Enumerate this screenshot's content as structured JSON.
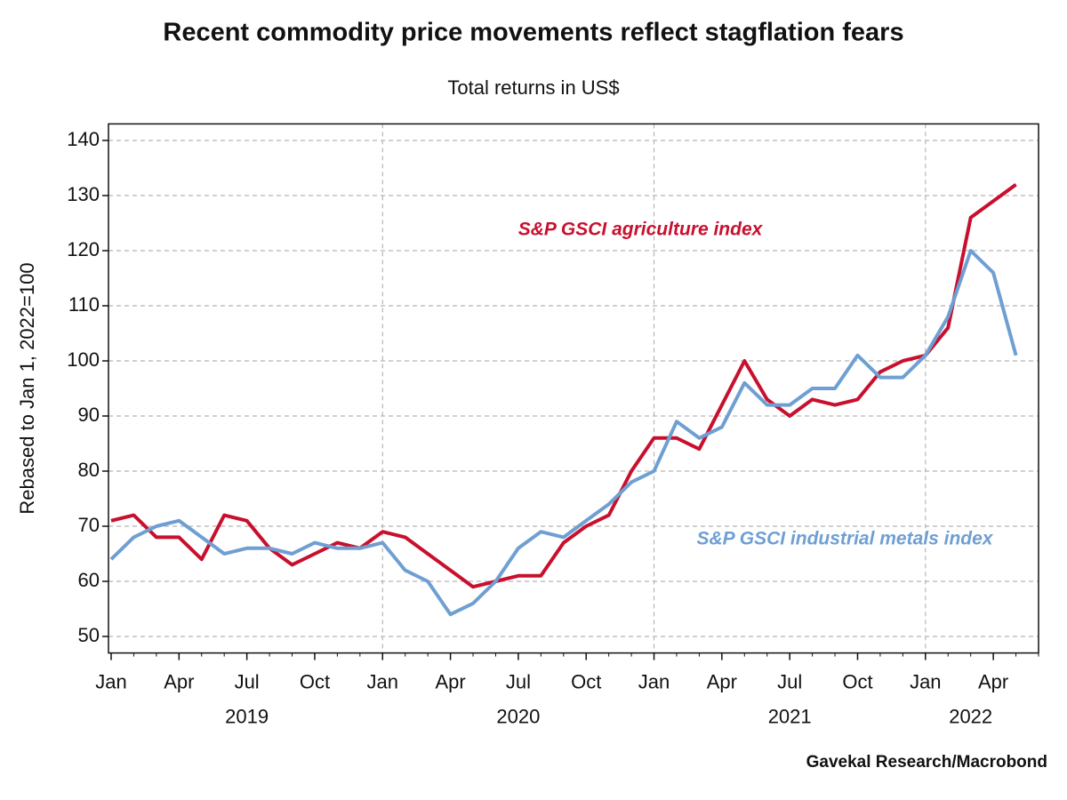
{
  "chart_data": {
    "type": "line",
    "title": "Recent commodity price movements reflect stagflation fears",
    "subtitle": "Total returns in US$",
    "y_label": "Rebased to Jan 1, 2022=100",
    "source": "Gavekal Research/Macrobond",
    "x": [
      "2019-01",
      "2019-02",
      "2019-03",
      "2019-04",
      "2019-05",
      "2019-06",
      "2019-07",
      "2019-08",
      "2019-09",
      "2019-10",
      "2019-11",
      "2019-12",
      "2020-01",
      "2020-02",
      "2020-03",
      "2020-04",
      "2020-05",
      "2020-06",
      "2020-07",
      "2020-08",
      "2020-09",
      "2020-10",
      "2020-11",
      "2020-12",
      "2021-01",
      "2021-02",
      "2021-03",
      "2021-04",
      "2021-05",
      "2021-06",
      "2021-07",
      "2021-08",
      "2021-09",
      "2021-10",
      "2021-11",
      "2021-12",
      "2022-01",
      "2022-02",
      "2022-03",
      "2022-04",
      "2022-05"
    ],
    "series": [
      {
        "name": "S&P GSCI agriculture index",
        "color": "#c8102e",
        "values": [
          71,
          72,
          68,
          68,
          64,
          72,
          71,
          66,
          63,
          65,
          67,
          66,
          69,
          68,
          65,
          62,
          59,
          60,
          61,
          61,
          67,
          70,
          72,
          80,
          86,
          86,
          84,
          92,
          100,
          93,
          90,
          93,
          92,
          93,
          98,
          100,
          101,
          106,
          126,
          129,
          132
        ]
      },
      {
        "name": "S&P GSCI industrial metals index",
        "color": "#6f9fd2",
        "values": [
          64,
          68,
          70,
          71,
          68,
          65,
          66,
          66,
          65,
          67,
          66,
          66,
          67,
          62,
          60,
          54,
          56,
          60,
          66,
          69,
          68,
          71,
          74,
          78,
          80,
          89,
          86,
          88,
          96,
          92,
          92,
          95,
          95,
          101,
          97,
          97,
          101,
          108,
          120,
          116,
          101
        ]
      }
    ],
    "xlim": [
      "2019-01",
      "2022-06"
    ],
    "xticks": [
      {
        "value": "2019-01",
        "label": "Jan"
      },
      {
        "value": "2019-04",
        "label": "Apr"
      },
      {
        "value": "2019-07",
        "label": "Jul"
      },
      {
        "value": "2019-10",
        "label": "Oct"
      },
      {
        "value": "2020-01",
        "label": "Jan"
      },
      {
        "value": "2020-04",
        "label": "Apr"
      },
      {
        "value": "2020-07",
        "label": "Jul"
      },
      {
        "value": "2020-10",
        "label": "Oct"
      },
      {
        "value": "2021-01",
        "label": "Jan"
      },
      {
        "value": "2021-04",
        "label": "Apr"
      },
      {
        "value": "2021-07",
        "label": "Jul"
      },
      {
        "value": "2021-10",
        "label": "Oct"
      },
      {
        "value": "2022-01",
        "label": "Jan"
      },
      {
        "value": "2022-04",
        "label": "Apr"
      }
    ],
    "xtick_groups": [
      {
        "value": "2019-07",
        "label": "2019"
      },
      {
        "value": "2020-07",
        "label": "2020"
      },
      {
        "value": "2021-07",
        "label": "2021"
      },
      {
        "value": "2022-03",
        "label": "2022"
      }
    ],
    "ylim": [
      47,
      143
    ],
    "yticks": [
      50,
      60,
      70,
      80,
      90,
      100,
      110,
      120,
      130,
      140
    ],
    "grid": true
  }
}
